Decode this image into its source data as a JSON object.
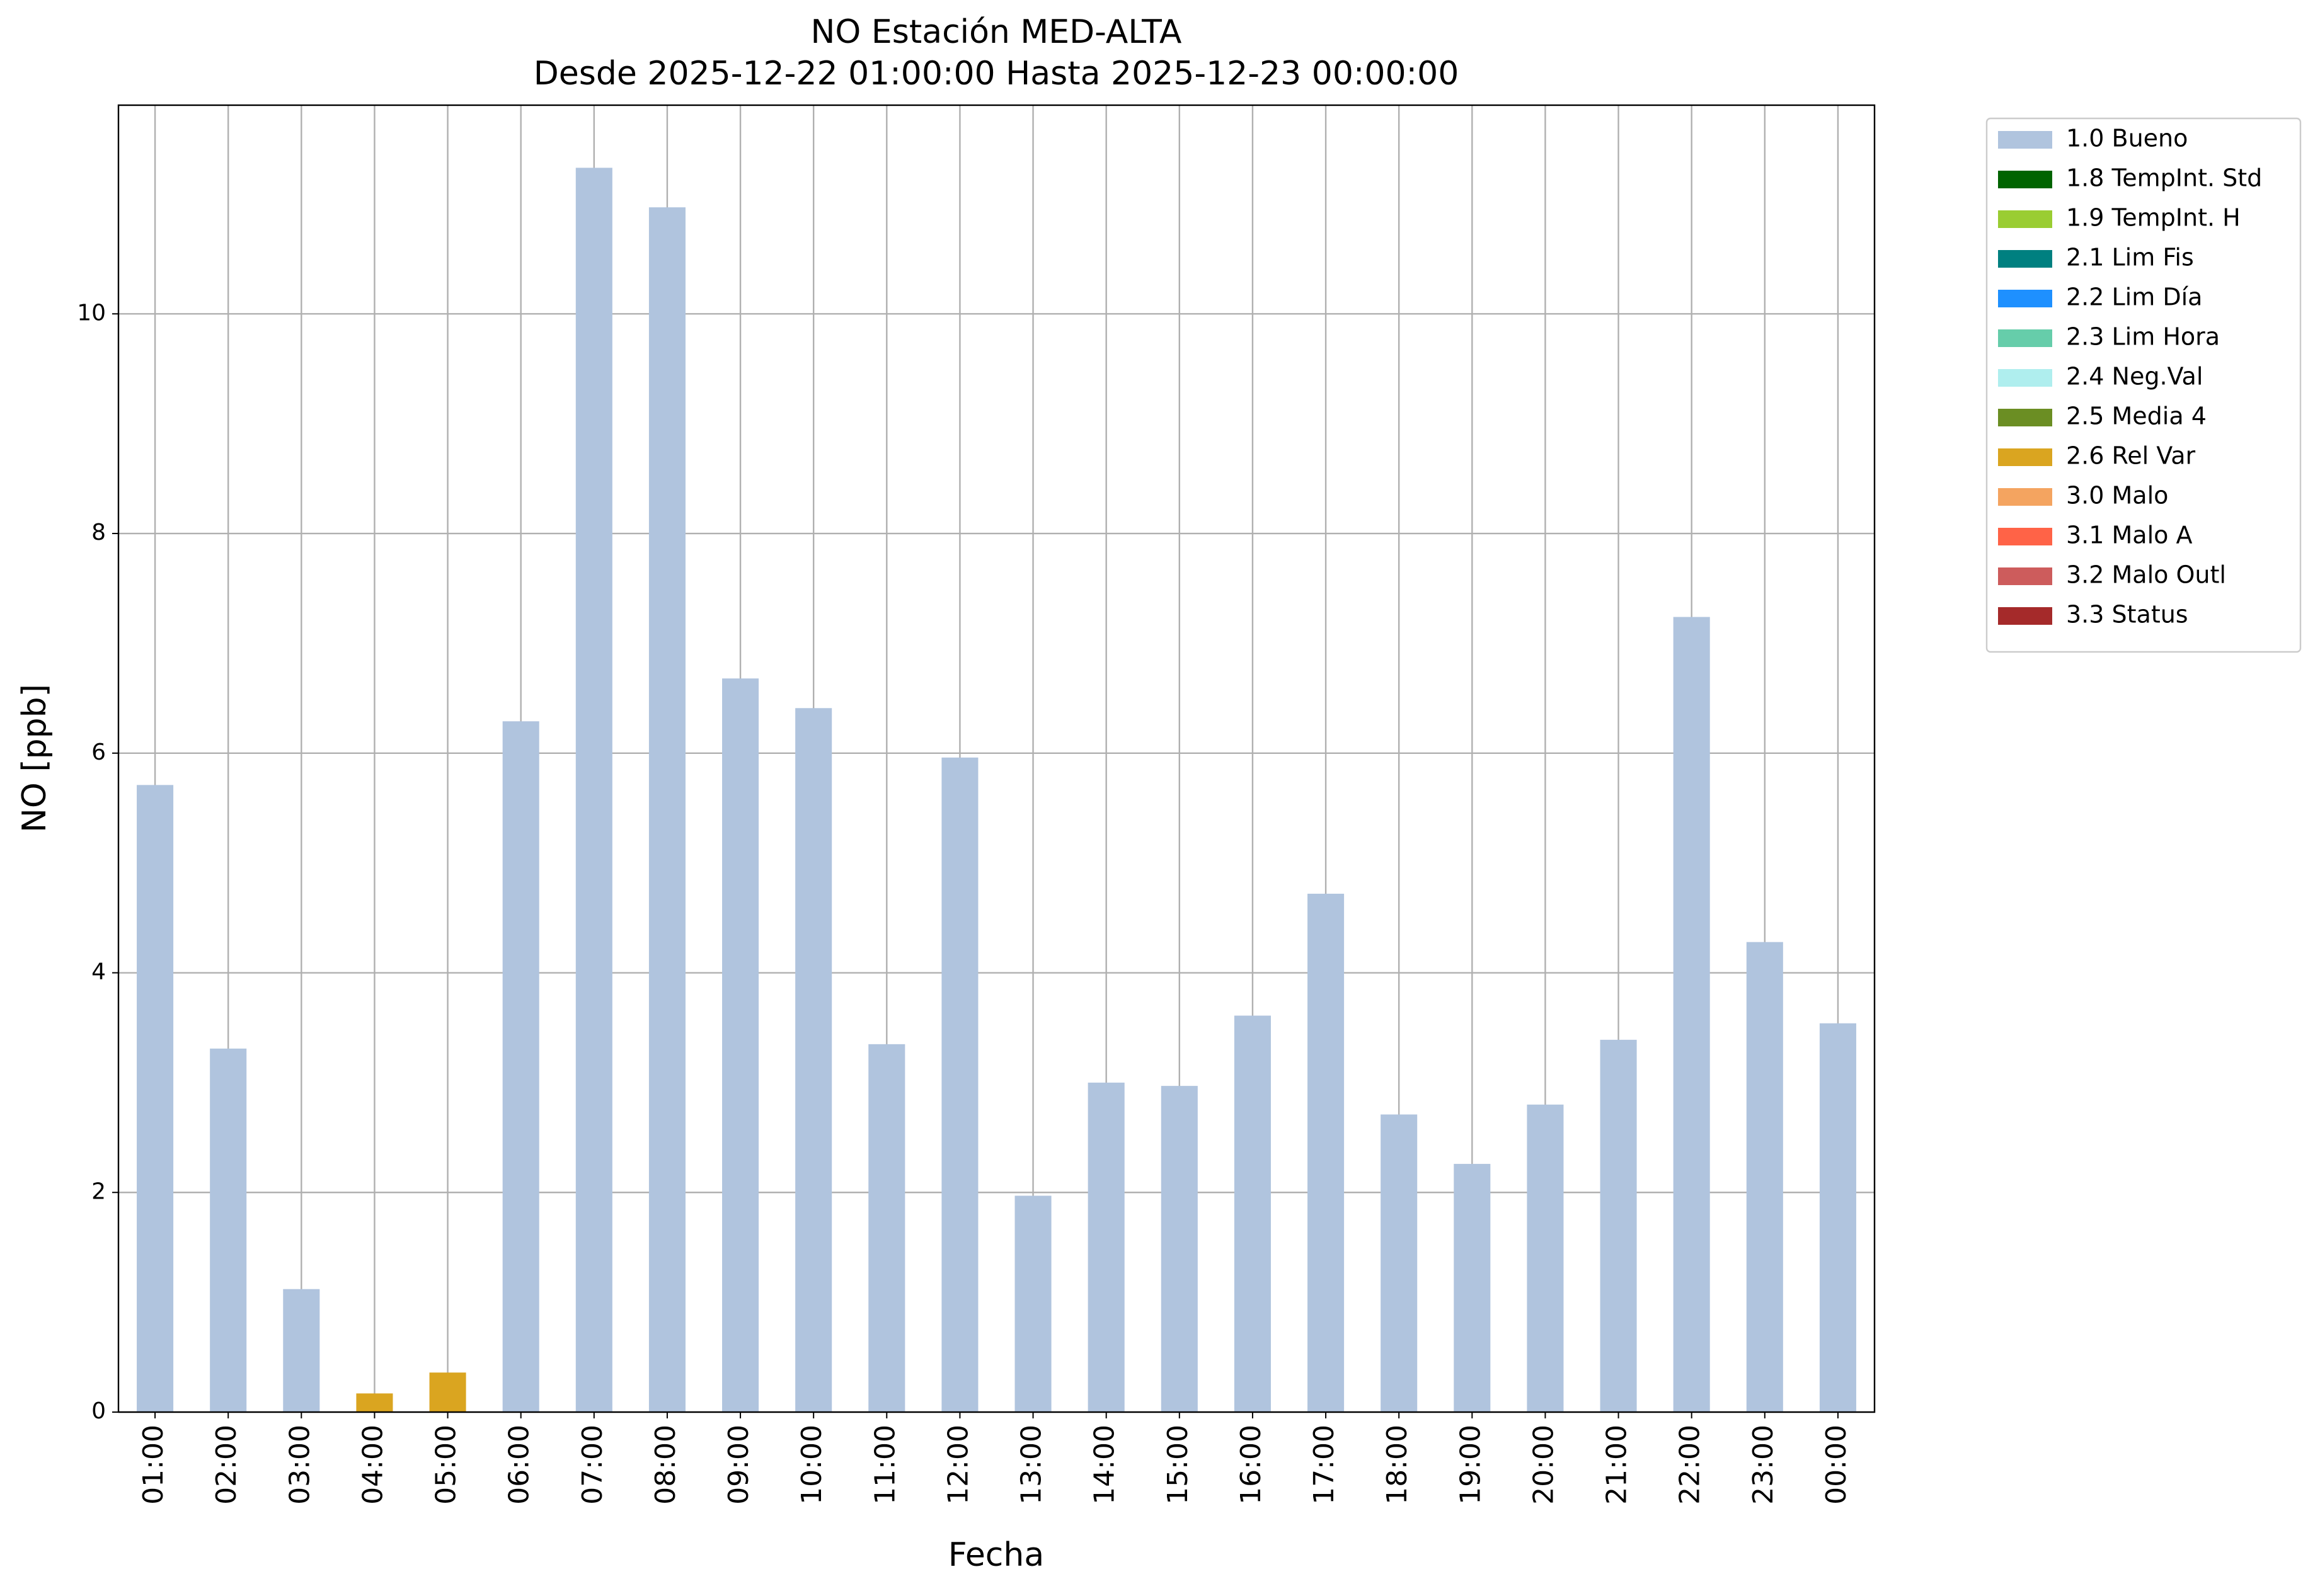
{
  "chart_data": {
    "type": "stacked_bar",
    "title": "NO Estación MED-ALTA",
    "subtitle": "Desde 2025-12-22 01:00:00 Hasta 2025-12-23 00:00:00",
    "x_label": "Fecha",
    "y_label": "NO [ppb]",
    "categories": [
      "01:00",
      "02:00",
      "03:00",
      "04:00",
      "05:00",
      "06:00",
      "07:00",
      "08:00",
      "09:00",
      "10:00",
      "11:00",
      "12:00",
      "13:00",
      "14:00",
      "15:00",
      "16:00",
      "17:00",
      "18:00",
      "19:00",
      "20:00",
      "21:00",
      "22:00",
      "23:00",
      "00:00"
    ],
    "series": [
      {
        "name": "1.0 Bueno",
        "color": "#b0c4de",
        "values": [
          5.71,
          3.31,
          1.12,
          null,
          null,
          6.29,
          11.33,
          10.97,
          6.68,
          6.41,
          3.35,
          5.96,
          1.97,
          3.0,
          2.97,
          3.61,
          4.72,
          2.71,
          2.26,
          2.8,
          3.39,
          7.24,
          4.28,
          3.54
        ]
      },
      {
        "name": "1.8 TempInt. Std",
        "color": "#006400",
        "values": [
          null,
          null,
          null,
          null,
          null,
          null,
          null,
          null,
          null,
          null,
          null,
          null,
          null,
          null,
          null,
          null,
          null,
          null,
          null,
          null,
          null,
          null,
          null,
          null
        ]
      },
      {
        "name": "1.9 TempInt. H",
        "color": "#9acd32",
        "values": [
          null,
          null,
          null,
          null,
          null,
          null,
          null,
          null,
          null,
          null,
          null,
          null,
          null,
          null,
          null,
          null,
          null,
          null,
          null,
          null,
          null,
          null,
          null,
          null
        ]
      },
      {
        "name": "2.1 Lim Fis",
        "color": "#008080",
        "values": [
          null,
          null,
          null,
          null,
          null,
          null,
          null,
          null,
          null,
          null,
          null,
          null,
          null,
          null,
          null,
          null,
          null,
          null,
          null,
          null,
          null,
          null,
          null,
          null
        ]
      },
      {
        "name": "2.2 Lim Día",
        "color": "#1e90ff",
        "values": [
          null,
          null,
          null,
          null,
          null,
          null,
          null,
          null,
          null,
          null,
          null,
          null,
          null,
          null,
          null,
          null,
          null,
          null,
          null,
          null,
          null,
          null,
          null,
          null
        ]
      },
      {
        "name": "2.3 Lim Hora",
        "color": "#66cdaa",
        "values": [
          null,
          null,
          null,
          null,
          null,
          null,
          null,
          null,
          null,
          null,
          null,
          null,
          null,
          null,
          null,
          null,
          null,
          null,
          null,
          null,
          null,
          null,
          null,
          null
        ]
      },
      {
        "name": "2.4 Neg.Val",
        "color": "#afeeee",
        "values": [
          null,
          null,
          null,
          null,
          null,
          null,
          null,
          null,
          null,
          null,
          null,
          null,
          null,
          null,
          null,
          null,
          null,
          null,
          null,
          null,
          null,
          null,
          null,
          null
        ]
      },
      {
        "name": "2.5 Media 4",
        "color": "#6b8e23",
        "values": [
          null,
          null,
          null,
          null,
          null,
          null,
          null,
          null,
          null,
          null,
          null,
          null,
          null,
          null,
          null,
          null,
          null,
          null,
          null,
          null,
          null,
          null,
          null,
          null
        ]
      },
      {
        "name": "2.6 Rel Var",
        "color": "#daa520",
        "values": [
          null,
          null,
          null,
          0.17,
          0.36,
          null,
          null,
          null,
          null,
          null,
          null,
          null,
          null,
          null,
          null,
          null,
          null,
          null,
          null,
          null,
          null,
          null,
          null,
          null
        ]
      },
      {
        "name": "3.0 Malo",
        "color": "#f4a460",
        "values": [
          null,
          null,
          null,
          null,
          null,
          null,
          null,
          null,
          null,
          null,
          null,
          null,
          null,
          null,
          null,
          null,
          null,
          null,
          null,
          null,
          null,
          null,
          null,
          null
        ]
      },
      {
        "name": "3.1 Malo A",
        "color": "#ff6347",
        "values": [
          null,
          null,
          null,
          null,
          null,
          null,
          null,
          null,
          null,
          null,
          null,
          null,
          null,
          null,
          null,
          null,
          null,
          null,
          null,
          null,
          null,
          null,
          null,
          null
        ]
      },
      {
        "name": "3.2 Malo Outl",
        "color": "#cd5c5c",
        "values": [
          null,
          null,
          null,
          null,
          null,
          null,
          null,
          null,
          null,
          null,
          null,
          null,
          null,
          null,
          null,
          null,
          null,
          null,
          null,
          null,
          null,
          null,
          null,
          null
        ]
      },
      {
        "name": "3.3 Status",
        "color": "#a52a2a",
        "values": [
          null,
          null,
          null,
          null,
          null,
          null,
          null,
          null,
          null,
          null,
          null,
          null,
          null,
          null,
          null,
          null,
          null,
          null,
          null,
          null,
          null,
          null,
          null,
          null
        ]
      }
    ],
    "ylim": [
      0,
      11.9
    ],
    "yticks": [
      0,
      2,
      4,
      6,
      8,
      10
    ],
    "grid": true,
    "legend": "outside-right"
  }
}
